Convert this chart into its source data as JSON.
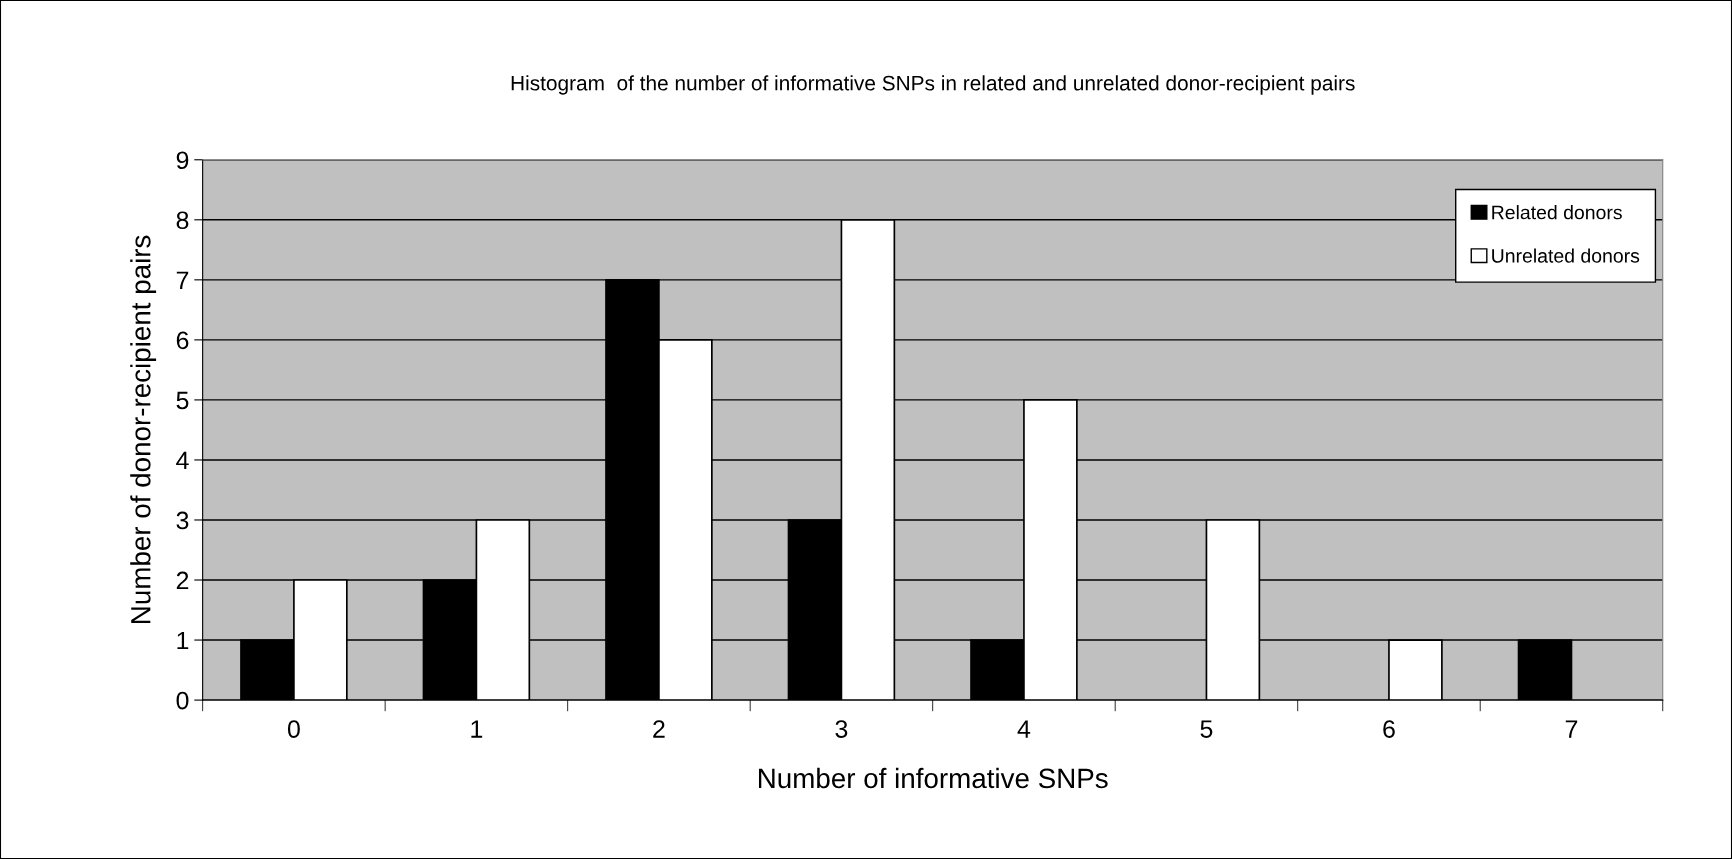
{
  "chart_data": {
    "type": "bar",
    "title": "Histogram  of the number of informative SNPs in related and unrelated donor-recipient pairs",
    "xlabel": "Number of informative SNPs",
    "ylabel": "Number of donor-recipient pairs",
    "categories": [
      "0",
      "1",
      "2",
      "3",
      "4",
      "5",
      "6",
      "7"
    ],
    "series": [
      {
        "name": "Related donors",
        "color": "#000000",
        "values": [
          1,
          2,
          7,
          3,
          1,
          null,
          null,
          1
        ]
      },
      {
        "name": "Unrelated donors",
        "color": "#ffffff",
        "values": [
          2,
          3,
          6,
          8,
          5,
          3,
          1,
          null
        ]
      }
    ],
    "ylim": [
      0,
      9
    ],
    "yticks": [
      0,
      1,
      2,
      3,
      4,
      5,
      6,
      7,
      8,
      9
    ],
    "grid": "y",
    "legend": "top right"
  }
}
